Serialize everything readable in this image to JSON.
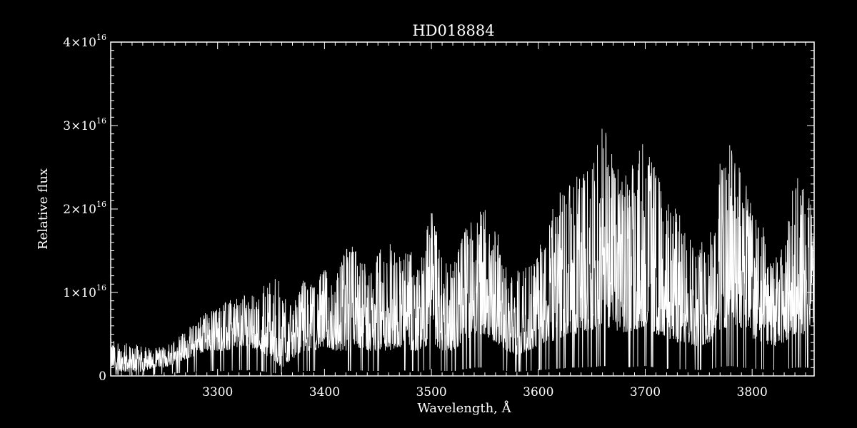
{
  "chart_data": {
    "type": "line",
    "title": "HD018884",
    "xlabel": "Wavelength, Å",
    "ylabel": "Relative flux",
    "xlim": [
      3200,
      3858
    ],
    "ylim": [
      0,
      4e+16
    ],
    "x_ticks": [
      3300,
      3400,
      3500,
      3600,
      3700,
      3800
    ],
    "y_ticks": [
      {
        "value": 0,
        "mantissa": "0",
        "exponent": ""
      },
      {
        "value": 1e+16,
        "mantissa": "1×10",
        "exponent": "16"
      },
      {
        "value": 2e+16,
        "mantissa": "2×10",
        "exponent": "16"
      },
      {
        "value": 3e+16,
        "mantissa": "3×10",
        "exponent": "16"
      },
      {
        "value": 4e+16,
        "mantissa": "4×10",
        "exponent": "16"
      }
    ],
    "series_color": "#ffffff",
    "grid": false,
    "series": [
      {
        "x": [
          3200,
          3210,
          3220,
          3230,
          3240,
          3250,
          3260,
          3270,
          3280,
          3290,
          3300,
          3310,
          3320,
          3330,
          3340,
          3350,
          3360,
          3370,
          3380,
          3390,
          3400,
          3410,
          3420,
          3430,
          3440,
          3450,
          3460,
          3470,
          3480,
          3490,
          3500,
          3510,
          3520,
          3530,
          3540,
          3550,
          3560,
          3570,
          3580,
          3590,
          3600,
          3610,
          3620,
          3630,
          3640,
          3650,
          3660,
          3670,
          3680,
          3690,
          3700,
          3710,
          3720,
          3730,
          3740,
          3750,
          3760,
          3770,
          3780,
          3790,
          3800,
          3810,
          3820,
          3830,
          3840,
          3850,
          3858
        ],
        "y_upper": [
          4500000000000000.0,
          4000000000000000.0,
          4000000000000000.0,
          3500000000000000.0,
          3500000000000000.0,
          3500000000000000.0,
          5000000000000000.0,
          5500000000000000.0,
          6500000000000000.0,
          8000000000000000.0,
          8500000000000000.0,
          9000000000000000.0,
          9500000000000000.0,
          1e+16,
          1e+16,
          1.25e+16,
          1.1e+16,
          8000000000000000.0,
          1.2e+16,
          1.1e+16,
          1.3e+16,
          1.2e+16,
          1.6e+16,
          1.55e+16,
          1.3e+16,
          1.5e+16,
          1.6e+16,
          1.6e+16,
          1.5e+16,
          1.4e+16,
          2.1e+16,
          1.5e+16,
          1.4e+16,
          1.8e+16,
          2e+16,
          2e+16,
          1.8e+16,
          1.5e+16,
          1.3e+16,
          1.3e+16,
          1.5e+16,
          1.9e+16,
          2.2e+16,
          2.5e+16,
          2.4e+16,
          2.6e+16,
          3.05e+16,
          2.7e+16,
          2.4e+16,
          2.6e+16,
          2.9e+16,
          2.5e+16,
          2.2e+16,
          2e+16,
          1.8e+16,
          1.6e+16,
          1.7e+16,
          2.6e+16,
          2.8e+16,
          2.6e+16,
          2.1e+16,
          1.8e+16,
          1.4e+16,
          1.6e+16,
          2.4e+16,
          2.3e+16,
          2e+16
        ],
        "y_lower": [
          1000000000000000.0,
          500000000000000.0,
          500000000000000.0,
          500000000000000.0,
          1000000000000000.0,
          1000000000000000.0,
          1500000000000000.0,
          2000000000000000.0,
          2500000000000000.0,
          3000000000000000.0,
          3000000000000000.0,
          3000000000000000.0,
          3500000000000000.0,
          3500000000000000.0,
          3000000000000000.0,
          2000000000000000.0,
          1000000000000000.0,
          2000000000000000.0,
          3000000000000000.0,
          3000000000000000.0,
          3500000000000000.0,
          3000000000000000.0,
          3000000000000000.0,
          3500000000000000.0,
          3000000000000000.0,
          3000000000000000.0,
          3000000000000000.0,
          3500000000000000.0,
          3000000000000000.0,
          3000000000000000.0,
          4000000000000000.0,
          3000000000000000.0,
          3000000000000000.0,
          4000000000000000.0,
          5000000000000000.0,
          5000000000000000.0,
          4000000000000000.0,
          3000000000000000.0,
          2500000000000000.0,
          3000000000000000.0,
          3500000000000000.0,
          4000000000000000.0,
          4500000000000000.0,
          5000000000000000.0,
          5000000000000000.0,
          5500000000000000.0,
          6000000000000000.0,
          5500000000000000.0,
          5000000000000000.0,
          5500000000000000.0,
          6000000000000000.0,
          5000000000000000.0,
          4500000000000000.0,
          4000000000000000.0,
          4000000000000000.0,
          3500000000000000.0,
          4000000000000000.0,
          5500000000000000.0,
          6000000000000000.0,
          5000000000000000.0,
          4500000000000000.0,
          4000000000000000.0,
          3500000000000000.0,
          4000000000000000.0,
          5000000000000000.0,
          5000000000000000.0,
          4500000000000000.0
        ]
      }
    ]
  }
}
